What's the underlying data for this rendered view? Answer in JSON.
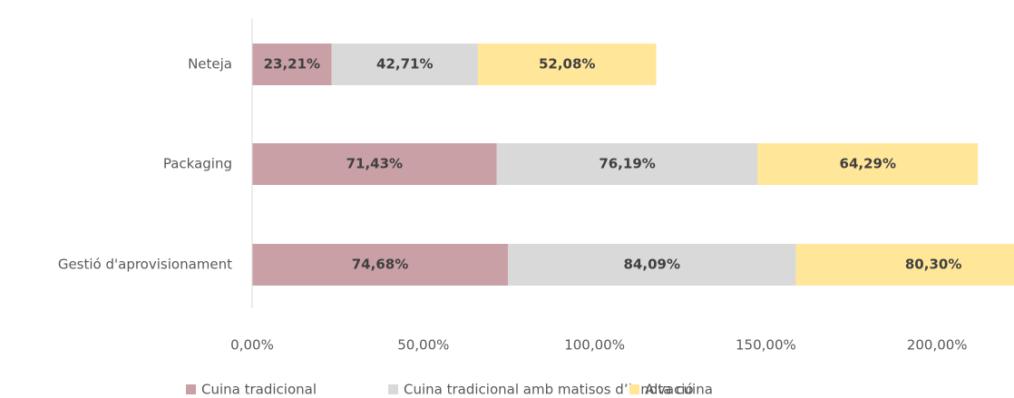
{
  "chart_data": {
    "type": "stacked_barh",
    "categories": [
      "Neteja",
      "Packaging",
      "Gestió d'aprovisionament"
    ],
    "series": [
      {
        "name": "Cuina tradicional",
        "color": "#c9a0a6",
        "values": [
          23.21,
          71.43,
          74.68
        ],
        "value_labels": [
          "23,21%",
          "71,43%",
          "74,68%"
        ]
      },
      {
        "name": "Cuina tradicional amb matisos d’innovació",
        "color": "#d9d9d9",
        "values": [
          42.71,
          76.19,
          84.09
        ],
        "value_labels": [
          "42,71%",
          "76,19%",
          "84,09%"
        ]
      },
      {
        "name": "Alta cuina",
        "color": "#ffe699",
        "values": [
          52.08,
          64.29,
          80.3
        ],
        "value_labels": [
          "52,08%",
          "64,29%",
          "80,30%"
        ]
      }
    ],
    "xlim": [
      0,
      250
    ],
    "xticks": [
      {
        "value": 0,
        "label": "0,00%"
      },
      {
        "value": 50,
        "label": "50,00%"
      },
      {
        "value": 100,
        "label": "100,00%"
      },
      {
        "value": 150,
        "label": "150,00%"
      },
      {
        "value": 200,
        "label": "200,00%"
      }
    ],
    "grid": false,
    "legend": "bottom"
  }
}
